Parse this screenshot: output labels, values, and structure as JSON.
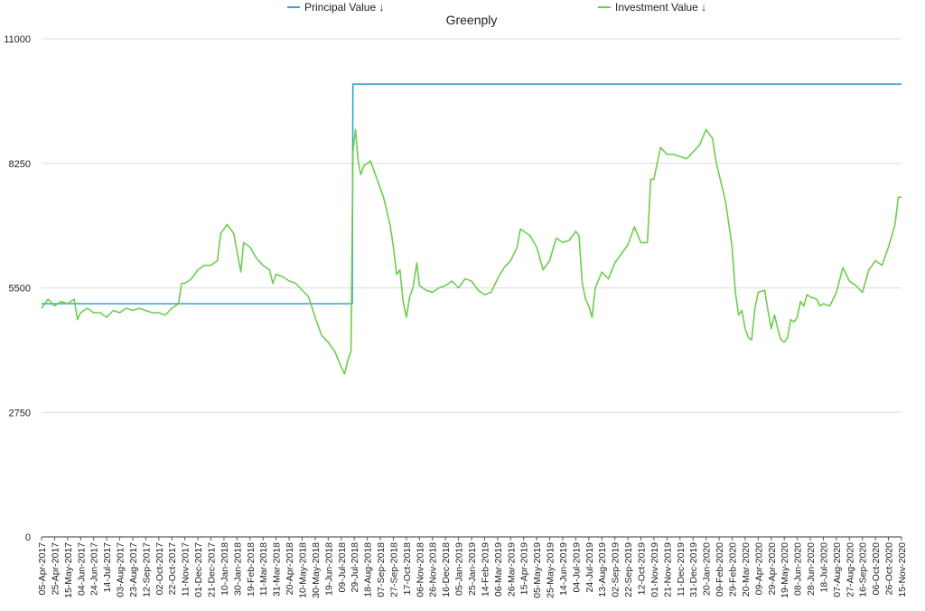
{
  "chart_data": {
    "type": "line",
    "title": "Greenply",
    "xlabel": "",
    "ylabel": "",
    "ylim": [
      0,
      11000
    ],
    "yticks": [
      0,
      2750,
      5500,
      8250,
      11000
    ],
    "grid": true,
    "legend_position": "top",
    "x_start": "05-Apr-2017",
    "x_end": "15-Nov-2020",
    "x_tick_labels": [
      "05-Apr-2017",
      "25-Apr-2017",
      "15-May-2017",
      "04-Jun-2017",
      "24-Jun-2017",
      "14-Jul-2017",
      "03-Aug-2017",
      "23-Aug-2017",
      "12-Sep-2017",
      "02-Oct-2017",
      "22-Oct-2017",
      "11-Nov-2017",
      "01-Dec-2017",
      "21-Dec-2017",
      "10-Jan-2018",
      "30-Jan-2018",
      "19-Feb-2018",
      "11-Mar-2018",
      "31-Mar-2018",
      "20-Apr-2018",
      "10-May-2018",
      "30-May-2018",
      "19-Jun-2018",
      "09-Jul-2018",
      "29-Jul-2018",
      "18-Aug-2018",
      "07-Sep-2018",
      "27-Sep-2018",
      "17-Oct-2018",
      "06-Nov-2018",
      "26-Nov-2018",
      "16-Dec-2018",
      "05-Jan-2019",
      "25-Jan-2019",
      "14-Feb-2019",
      "06-Mar-2019",
      "26-Mar-2019",
      "15-Apr-2019",
      "05-May-2019",
      "25-May-2019",
      "14-Jun-2019",
      "04-Jul-2019",
      "24-Jul-2019",
      "13-Aug-2019",
      "02-Sep-2019",
      "22-Sep-2019",
      "12-Oct-2019",
      "01-Nov-2019",
      "21-Nov-2019",
      "11-Dec-2019",
      "31-Dec-2019",
      "20-Jan-2020",
      "09-Feb-2020",
      "29-Feb-2020",
      "20-Mar-2020",
      "09-Apr-2020",
      "29-Apr-2020",
      "19-May-2020",
      "08-Jun-2020",
      "28-Jun-2020",
      "18-Jul-2020",
      "07-Aug-2020",
      "27-Aug-2020",
      "16-Sep-2020",
      "06-Oct-2020",
      "26-Oct-2020",
      "15-Nov-2020"
    ],
    "series": [
      {
        "name": "Principal Value ↓",
        "color": "#3a9fd6",
        "points": [
          [
            "05-Apr-2017",
            5150
          ],
          [
            "26-Jul-2018",
            5150
          ],
          [
            "27-Jul-2018",
            10000
          ],
          [
            "15-Nov-2020",
            10000
          ]
        ]
      },
      {
        "name": "Investment  Value ↓",
        "color": "#6dce4e",
        "points": [
          [
            "05-Apr-2017",
            5050
          ],
          [
            "15-Apr-2017",
            5250
          ],
          [
            "25-Apr-2017",
            5100
          ],
          [
            "05-May-2017",
            5200
          ],
          [
            "15-May-2017",
            5150
          ],
          [
            "25-May-2017",
            5250
          ],
          [
            "30-May-2017",
            4800
          ],
          [
            "04-Jun-2017",
            4950
          ],
          [
            "14-Jun-2017",
            5050
          ],
          [
            "24-Jun-2017",
            4950
          ],
          [
            "04-Jul-2017",
            4950
          ],
          [
            "14-Jul-2017",
            4850
          ],
          [
            "24-Jul-2017",
            5000
          ],
          [
            "03-Aug-2017",
            4950
          ],
          [
            "13-Aug-2017",
            5050
          ],
          [
            "23-Aug-2017",
            5000
          ],
          [
            "02-Sep-2017",
            5050
          ],
          [
            "12-Sep-2017",
            5000
          ],
          [
            "22-Sep-2017",
            4950
          ],
          [
            "02-Oct-2017",
            4950
          ],
          [
            "12-Oct-2017",
            4900
          ],
          [
            "22-Oct-2017",
            5050
          ],
          [
            "01-Nov-2017",
            5150
          ],
          [
            "06-Nov-2017",
            5600
          ],
          [
            "11-Nov-2017",
            5600
          ],
          [
            "21-Nov-2017",
            5700
          ],
          [
            "01-Dec-2017",
            5900
          ],
          [
            "11-Dec-2017",
            6000
          ],
          [
            "21-Dec-2017",
            6000
          ],
          [
            "31-Dec-2017",
            6100
          ],
          [
            "05-Jan-2018",
            6700
          ],
          [
            "15-Jan-2018",
            6900
          ],
          [
            "25-Jan-2018",
            6700
          ],
          [
            "30-Jan-2018",
            6300
          ],
          [
            "05-Feb-2018",
            5850
          ],
          [
            "09-Feb-2018",
            6500
          ],
          [
            "19-Feb-2018",
            6400
          ],
          [
            "01-Mar-2018",
            6150
          ],
          [
            "11-Mar-2018",
            6000
          ],
          [
            "21-Mar-2018",
            5900
          ],
          [
            "26-Mar-2018",
            5600
          ],
          [
            "31-Mar-2018",
            5800
          ],
          [
            "10-Apr-2018",
            5750
          ],
          [
            "20-Apr-2018",
            5650
          ],
          [
            "30-Apr-2018",
            5600
          ],
          [
            "10-May-2018",
            5450
          ],
          [
            "20-May-2018",
            5300
          ],
          [
            "30-May-2018",
            4850
          ],
          [
            "09-Jun-2018",
            4450
          ],
          [
            "19-Jun-2018",
            4300
          ],
          [
            "29-Jun-2018",
            4100
          ],
          [
            "09-Jul-2018",
            3750
          ],
          [
            "14-Jul-2018",
            3600
          ],
          [
            "19-Jul-2018",
            3900
          ],
          [
            "24-Jul-2018",
            4100
          ],
          [
            "27-Jul-2018",
            8500
          ],
          [
            "31-Jul-2018",
            9000
          ],
          [
            "04-Aug-2018",
            8300
          ],
          [
            "08-Aug-2018",
            8000
          ],
          [
            "13-Aug-2018",
            8200
          ],
          [
            "23-Aug-2018",
            8300
          ],
          [
            "02-Sep-2018",
            7900
          ],
          [
            "12-Sep-2018",
            7500
          ],
          [
            "22-Sep-2018",
            6900
          ],
          [
            "27-Sep-2018",
            6400
          ],
          [
            "02-Oct-2018",
            5800
          ],
          [
            "07-Oct-2018",
            5900
          ],
          [
            "12-Oct-2018",
            5200
          ],
          [
            "17-Oct-2018",
            4850
          ],
          [
            "22-Oct-2018",
            5300
          ],
          [
            "27-Oct-2018",
            5500
          ],
          [
            "02-Nov-2018",
            6050
          ],
          [
            "06-Nov-2018",
            5550
          ],
          [
            "16-Nov-2018",
            5450
          ],
          [
            "26-Nov-2018",
            5400
          ],
          [
            "06-Dec-2018",
            5500
          ],
          [
            "16-Dec-2018",
            5550
          ],
          [
            "26-Dec-2018",
            5650
          ],
          [
            "05-Jan-2019",
            5500
          ],
          [
            "15-Jan-2019",
            5700
          ],
          [
            "25-Jan-2019",
            5650
          ],
          [
            "04-Feb-2019",
            5450
          ],
          [
            "14-Feb-2019",
            5350
          ],
          [
            "24-Feb-2019",
            5400
          ],
          [
            "06-Mar-2019",
            5700
          ],
          [
            "16-Mar-2019",
            5950
          ],
          [
            "26-Mar-2019",
            6100
          ],
          [
            "05-Apr-2019",
            6400
          ],
          [
            "10-Apr-2019",
            6800
          ],
          [
            "15-Apr-2019",
            6750
          ],
          [
            "25-Apr-2019",
            6650
          ],
          [
            "05-May-2019",
            6400
          ],
          [
            "15-May-2019",
            5900
          ],
          [
            "25-May-2019",
            6100
          ],
          [
            "04-Jun-2019",
            6600
          ],
          [
            "14-Jun-2019",
            6500
          ],
          [
            "24-Jun-2019",
            6550
          ],
          [
            "04-Jul-2019",
            6750
          ],
          [
            "09-Jul-2019",
            6650
          ],
          [
            "14-Jul-2019",
            5600
          ],
          [
            "19-Jul-2019",
            5250
          ],
          [
            "24-Jul-2019",
            5100
          ],
          [
            "29-Jul-2019",
            4850
          ],
          [
            "03-Aug-2019",
            5500
          ],
          [
            "13-Aug-2019",
            5850
          ],
          [
            "23-Aug-2019",
            5700
          ],
          [
            "02-Sep-2019",
            6050
          ],
          [
            "12-Sep-2019",
            6250
          ],
          [
            "22-Sep-2019",
            6450
          ],
          [
            "02-Oct-2019",
            6850
          ],
          [
            "12-Oct-2019",
            6500
          ],
          [
            "22-Oct-2019",
            6500
          ],
          [
            "27-Oct-2019",
            7900
          ],
          [
            "01-Nov-2019",
            7900
          ],
          [
            "11-Nov-2019",
            8600
          ],
          [
            "21-Nov-2019",
            8450
          ],
          [
            "01-Dec-2019",
            8450
          ],
          [
            "11-Dec-2019",
            8400
          ],
          [
            "21-Dec-2019",
            8350
          ],
          [
            "31-Dec-2019",
            8500
          ],
          [
            "10-Jan-2020",
            8650
          ],
          [
            "20-Jan-2020",
            9000
          ],
          [
            "30-Jan-2020",
            8800
          ],
          [
            "04-Feb-2020",
            8300
          ],
          [
            "09-Feb-2020",
            8000
          ],
          [
            "14-Feb-2020",
            7700
          ],
          [
            "19-Feb-2020",
            7400
          ],
          [
            "24-Feb-2020",
            6900
          ],
          [
            "29-Feb-2020",
            6400
          ],
          [
            "05-Mar-2020",
            5400
          ],
          [
            "10-Mar-2020",
            4900
          ],
          [
            "15-Mar-2020",
            5000
          ],
          [
            "20-Mar-2020",
            4600
          ],
          [
            "25-Mar-2020",
            4400
          ],
          [
            "30-Mar-2020",
            4350
          ],
          [
            "04-Apr-2020",
            5050
          ],
          [
            "09-Apr-2020",
            5400
          ],
          [
            "19-Apr-2020",
            5450
          ],
          [
            "24-Apr-2020",
            5000
          ],
          [
            "29-Apr-2020",
            4600
          ],
          [
            "04-May-2020",
            4900
          ],
          [
            "09-May-2020",
            4600
          ],
          [
            "14-May-2020",
            4350
          ],
          [
            "19-May-2020",
            4300
          ],
          [
            "24-May-2020",
            4400
          ],
          [
            "29-May-2020",
            4800
          ],
          [
            "03-Jun-2020",
            4750
          ],
          [
            "08-Jun-2020",
            4850
          ],
          [
            "13-Jun-2020",
            5200
          ],
          [
            "18-Jun-2020",
            5100
          ],
          [
            "23-Jun-2020",
            5350
          ],
          [
            "28-Jun-2020",
            5300
          ],
          [
            "08-Jul-2020",
            5250
          ],
          [
            "13-Jul-2020",
            5100
          ],
          [
            "18-Jul-2020",
            5150
          ],
          [
            "28-Jul-2020",
            5100
          ],
          [
            "07-Aug-2020",
            5400
          ],
          [
            "17-Aug-2020",
            5950
          ],
          [
            "27-Aug-2020",
            5650
          ],
          [
            "06-Sep-2020",
            5550
          ],
          [
            "16-Sep-2020",
            5400
          ],
          [
            "26-Sep-2020",
            5900
          ],
          [
            "06-Oct-2020",
            6100
          ],
          [
            "16-Oct-2020",
            6000
          ],
          [
            "26-Oct-2020",
            6400
          ],
          [
            "05-Nov-2020",
            6900
          ],
          [
            "10-Nov-2020",
            7500
          ],
          [
            "15-Nov-2020",
            7500
          ]
        ]
      }
    ]
  }
}
